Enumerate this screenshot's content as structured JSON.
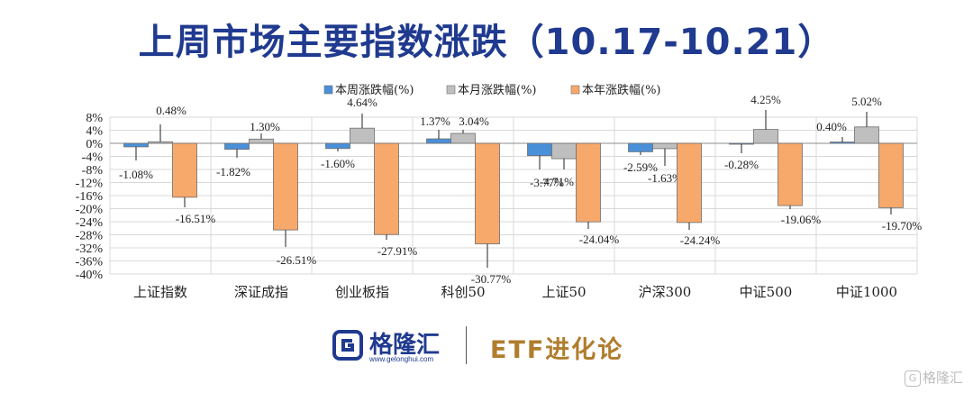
{
  "title": "上周市场主要指数涨跌（10.17-10.21）",
  "chart_data": {
    "type": "bar",
    "categories": [
      "上证指数",
      "深证成指",
      "创业板指",
      "科创50",
      "上证50",
      "沪深300",
      "中证500",
      "中证1000"
    ],
    "series": [
      {
        "name": "本周涨跌幅(%)",
        "color": "#4a90d9",
        "values": [
          -1.08,
          -1.82,
          -1.6,
          1.37,
          -3.77,
          -2.59,
          -0.28,
          0.4
        ],
        "labels": [
          "-1.08%",
          "-1.82%",
          "-1.60%",
          "1.37%",
          "-3.77%",
          "-2.59%",
          "-0.28%",
          "0.40%"
        ]
      },
      {
        "name": "本月涨跌幅(%)",
        "color": "#bfbfbf",
        "values": [
          0.48,
          1.3,
          4.64,
          3.04,
          -4.71,
          -1.63,
          4.25,
          5.02
        ],
        "labels": [
          "0.48%",
          "1.30%",
          "4.64%",
          "3.04%",
          "-4.71%",
          "-1.63%",
          "4.25%",
          "5.02%"
        ]
      },
      {
        "name": "本年涨跌幅(%)",
        "color": "#f7a86b",
        "values": [
          -16.51,
          -26.51,
          -27.91,
          -30.77,
          -24.04,
          -24.24,
          -19.06,
          -19.7
        ],
        "labels": [
          "-16.51%",
          "-26.51%",
          "-27.91%",
          "-30.77%",
          "-24.04%",
          "-24.24%",
          "-19.06%",
          "-19.70%"
        ]
      }
    ],
    "yticks": [
      "8%",
      "4%",
      "0%",
      "-4%",
      "-8%",
      "-12%",
      "-16%",
      "-20%",
      "-24%",
      "-28%",
      "-32%",
      "-36%",
      "-40%"
    ],
    "ylim": [
      -40,
      8
    ],
    "grid": true,
    "legend": "top-center"
  },
  "footer": {
    "brand_name": "格隆汇",
    "brand_url": "www.gelonghui.com",
    "etf_brand": "ETF进化论",
    "watermark": "格隆汇",
    "watermark_icon": "G"
  }
}
